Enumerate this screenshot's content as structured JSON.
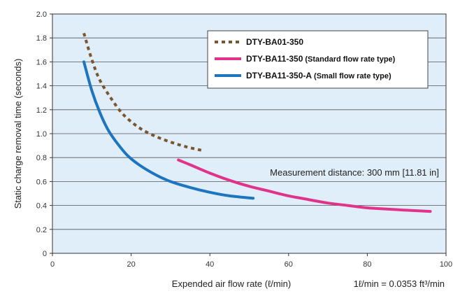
{
  "chart_data": {
    "type": "line",
    "title": "",
    "ylabel": "Static charge removal time (seconds)",
    "xlabel": "Expended air flow rate (ℓ/min)",
    "unit_note": "1ℓ/min = 0.0353 ft³/min",
    "annotation": "Measurement distance: 300 mm [11.81 in]",
    "xlim": [
      0,
      100
    ],
    "ylim": [
      0,
      2.0
    ],
    "x_ticks": [
      0,
      20,
      40,
      60,
      80,
      100
    ],
    "x_tick_labels": [
      "0",
      "20",
      "40",
      "60",
      "80",
      "100"
    ],
    "y_ticks": [
      0,
      0.2,
      0.4,
      0.6,
      0.8,
      1.0,
      1.2,
      1.4,
      1.6,
      1.8,
      2.0
    ],
    "y_tick_labels": [
      "0",
      "0.2",
      "0.4",
      "0.6",
      "0.8",
      "1.0",
      "1.2",
      "1.4",
      "1.6",
      "1.8",
      "2.0"
    ],
    "grid": "horizontal",
    "legend_position": "top-right",
    "background_color": "#dfeef9",
    "series": [
      {
        "name": "DTY-BA01-350",
        "note": "",
        "color": "#7a5530",
        "style": "dotted",
        "x": [
          8,
          10,
          12,
          15,
          18,
          22,
          26,
          30,
          34,
          38
        ],
        "y": [
          1.84,
          1.62,
          1.45,
          1.29,
          1.16,
          1.05,
          0.98,
          0.93,
          0.89,
          0.86
        ]
      },
      {
        "name": "DTY-BA11-350",
        "note": "(Standard flow rate type)",
        "color": "#e0338a",
        "style": "solid",
        "x": [
          32,
          35,
          40,
          45,
          50,
          55,
          60,
          65,
          70,
          75,
          80,
          85,
          90,
          96
        ],
        "y": [
          0.78,
          0.74,
          0.67,
          0.61,
          0.56,
          0.52,
          0.48,
          0.45,
          0.42,
          0.4,
          0.38,
          0.37,
          0.36,
          0.35
        ]
      },
      {
        "name": "DTY-BA11-350-A",
        "note": "(Small flow rate type)",
        "color": "#1e75bf",
        "style": "solid",
        "x": [
          8,
          10,
          12,
          14,
          16,
          19,
          22,
          26,
          30,
          35,
          40,
          45,
          51
        ],
        "y": [
          1.6,
          1.36,
          1.18,
          1.04,
          0.94,
          0.82,
          0.74,
          0.66,
          0.6,
          0.55,
          0.51,
          0.48,
          0.46
        ]
      }
    ]
  }
}
